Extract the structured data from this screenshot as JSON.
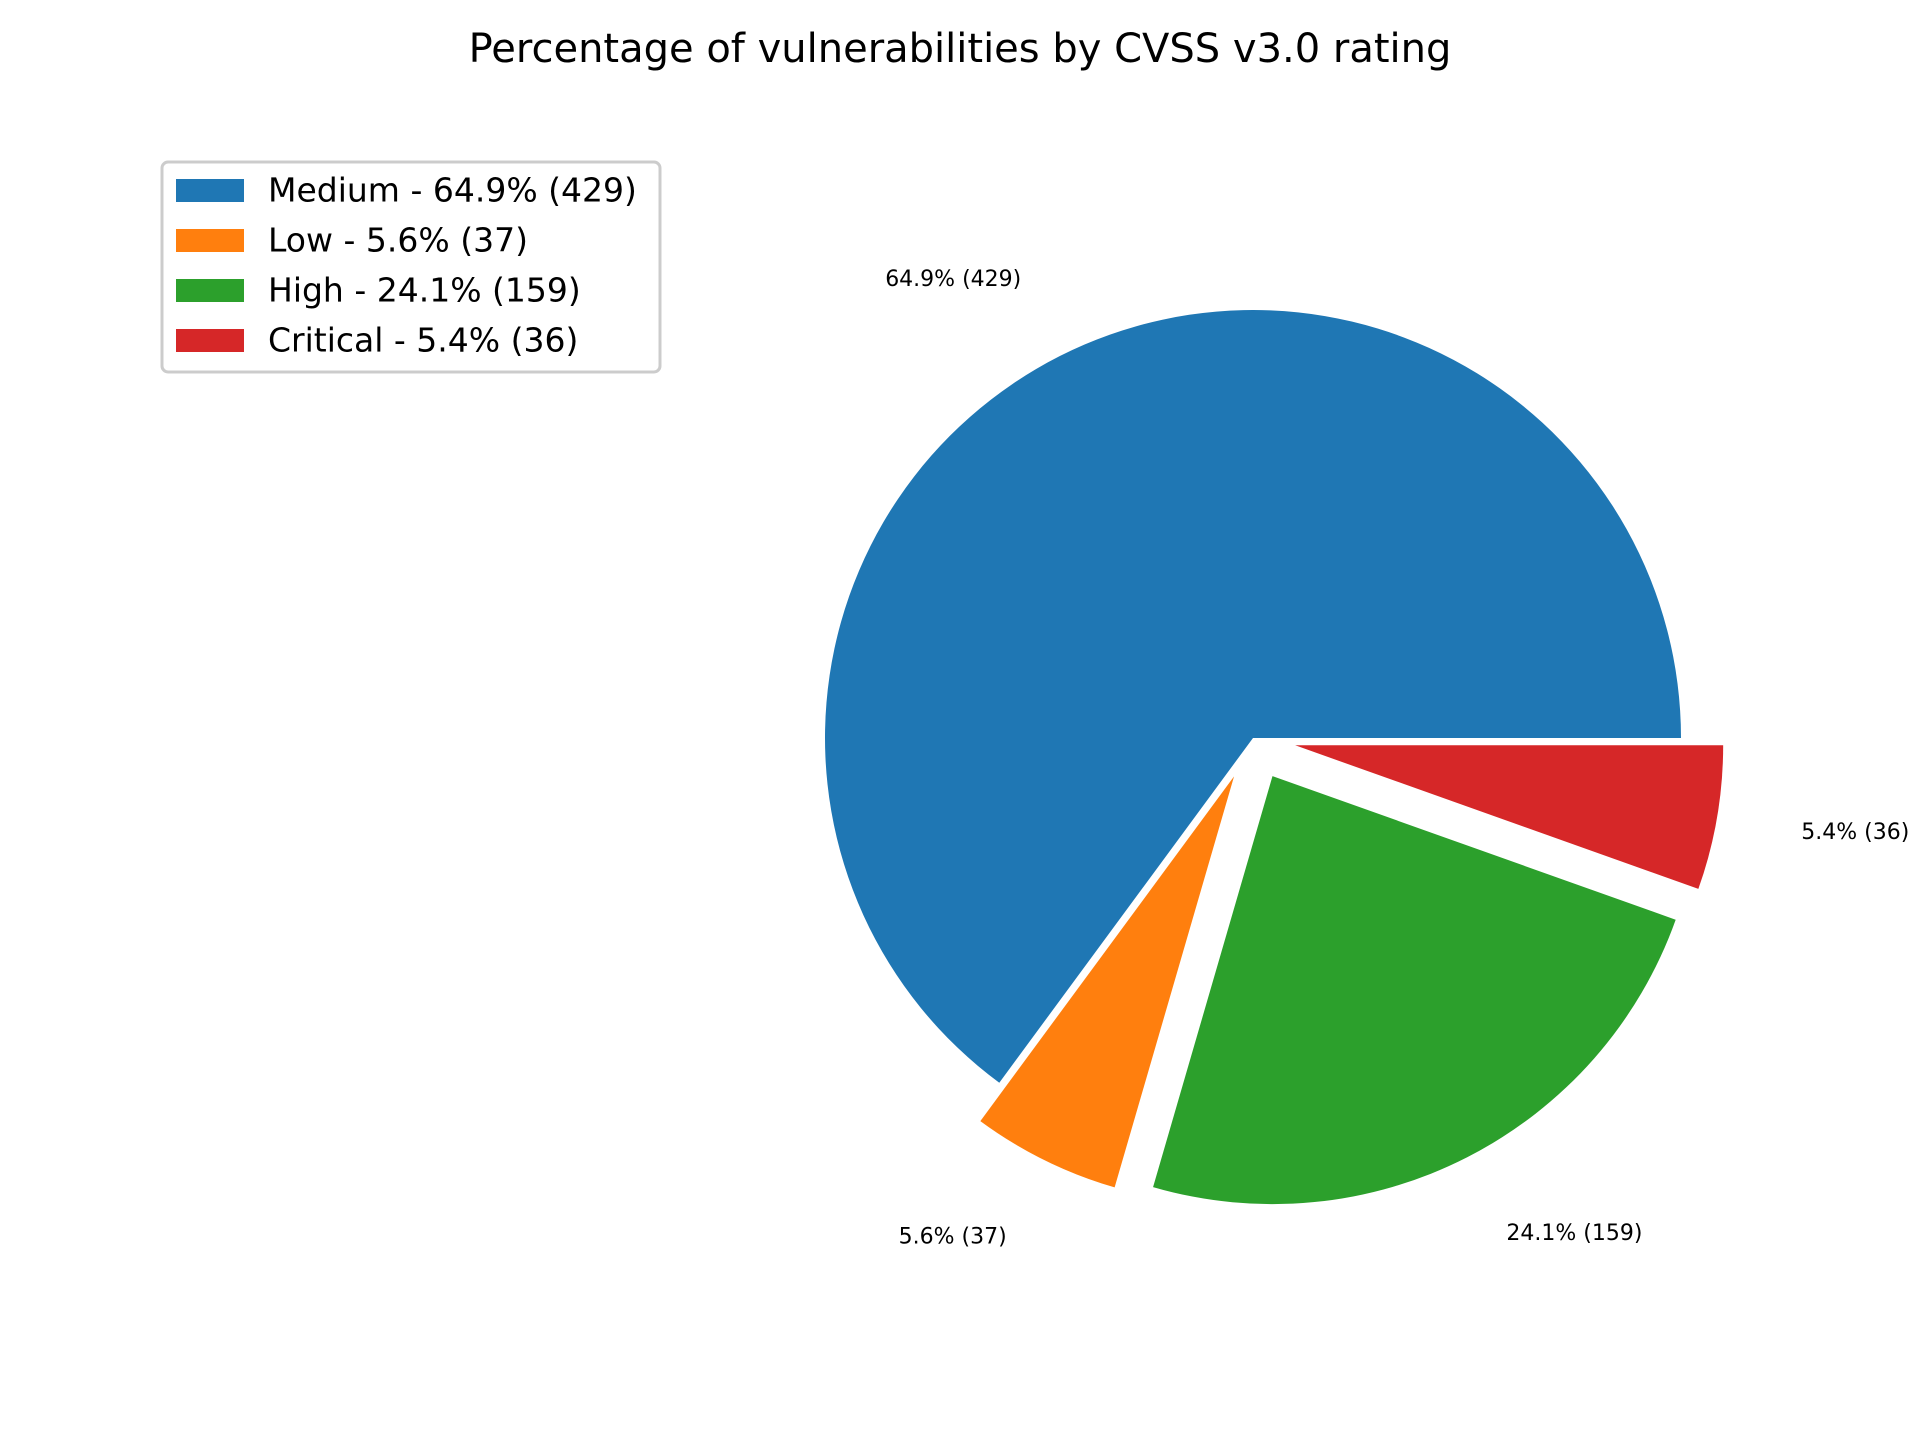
{
  "chart_data": {
    "type": "pie",
    "title": "Percentage of vulnerabilities by CVSS v3.0 rating",
    "start_angle_deg": 0,
    "direction": "counterclockwise",
    "legend_position": "top-left",
    "slices": [
      {
        "name": "Medium",
        "value": 429,
        "percent": 64.9,
        "label": "64.9% (429)",
        "legend": "Medium - 64.9% (429)",
        "color": "#1f77b4",
        "exploded": false
      },
      {
        "name": "Low",
        "value": 37,
        "percent": 5.6,
        "label": "5.6% (37)",
        "legend": "Low - 5.6% (37)",
        "color": "#ff7f0e",
        "exploded": true
      },
      {
        "name": "High",
        "value": 159,
        "percent": 24.1,
        "label": "24.1% (159)",
        "legend": "High - 24.1% (159)",
        "color": "#2ca02c",
        "exploded": true
      },
      {
        "name": "Critical",
        "value": 36,
        "percent": 5.4,
        "label": "5.4% (36)",
        "legend": "Critical - 5.4% (36)",
        "color": "#d62728",
        "exploded": true
      }
    ]
  }
}
